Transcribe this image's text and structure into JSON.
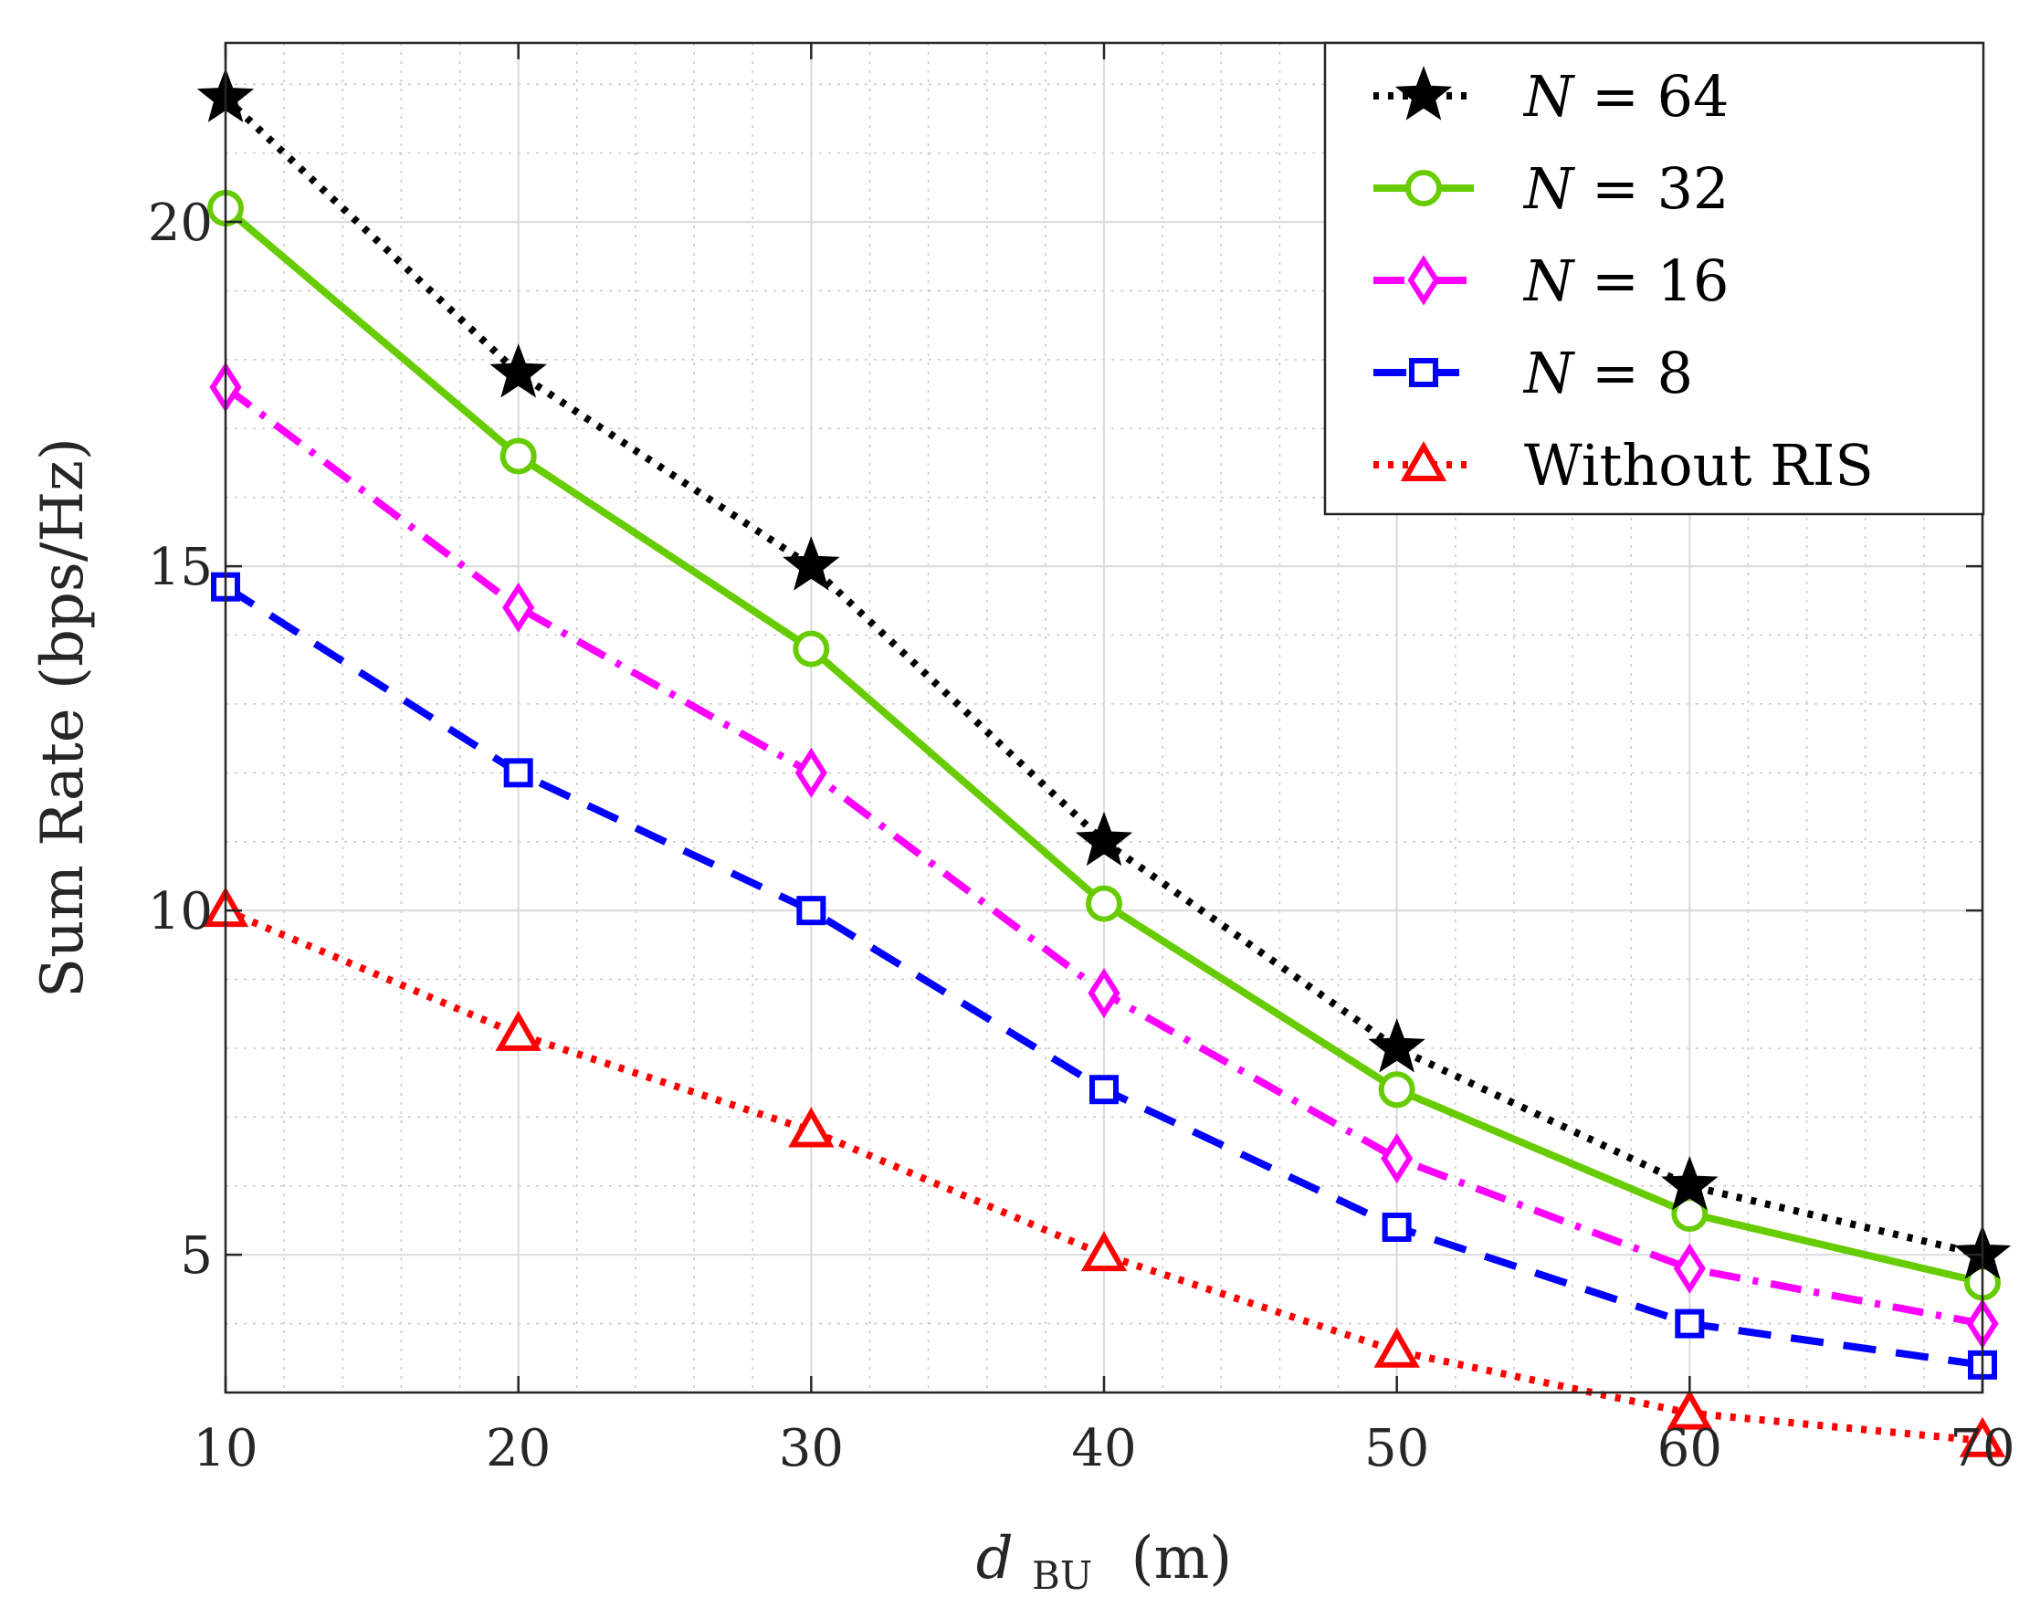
{
  "chart_data": {
    "type": "line",
    "title": "",
    "xlabel": "d_BU (m)",
    "xlabel_main": "d",
    "xlabel_sub": "BU",
    "xlabel_unit": "(m)",
    "ylabel": "Sum Rate (bps/Hz)",
    "x": [
      10,
      20,
      30,
      40,
      50,
      60,
      70
    ],
    "xlim": [
      10,
      70
    ],
    "ylim": [
      3,
      22.6
    ],
    "xticks": [
      "10",
      "20",
      "30",
      "40",
      "50",
      "60",
      "70"
    ],
    "yticks": [
      "5",
      "10",
      "15",
      "20"
    ],
    "ytick_values": [
      5,
      10,
      15,
      20
    ],
    "grid": true,
    "minor_grid": true,
    "legend_position": "top-right",
    "series": [
      {
        "name": "N = 64",
        "var": "N",
        "rhs": " = 64",
        "color": "#000000",
        "marker": "star",
        "line": "dotted",
        "values": [
          21.8,
          17.8,
          15.0,
          11.0,
          8.0,
          6.0,
          5.0
        ]
      },
      {
        "name": "N = 32",
        "var": "N",
        "rhs": " = 32",
        "color": "#66cc00",
        "marker": "circle",
        "line": "solid",
        "values": [
          20.2,
          16.6,
          13.8,
          10.1,
          7.4,
          5.6,
          4.6
        ]
      },
      {
        "name": "N = 16",
        "var": "N",
        "rhs": " = 16",
        "color": "#ff00ff",
        "marker": "diamond",
        "line": "dashdot",
        "values": [
          17.6,
          14.4,
          12.0,
          8.8,
          6.4,
          4.8,
          4.0
        ]
      },
      {
        "name": "N = 8",
        "var": "N",
        "rhs": " = 8",
        "color": "#0000ff",
        "marker": "square",
        "line": "dashed",
        "values": [
          14.7,
          12.0,
          10.0,
          7.4,
          5.4,
          4.0,
          3.4
        ]
      },
      {
        "name": "Without RIS",
        "var": "",
        "rhs": "Without RIS",
        "color": "#ff0000",
        "marker": "triangle",
        "line": "dotted",
        "values": [
          10.0,
          8.2,
          6.8,
          5.0,
          3.6,
          2.7,
          2.3
        ]
      }
    ]
  }
}
